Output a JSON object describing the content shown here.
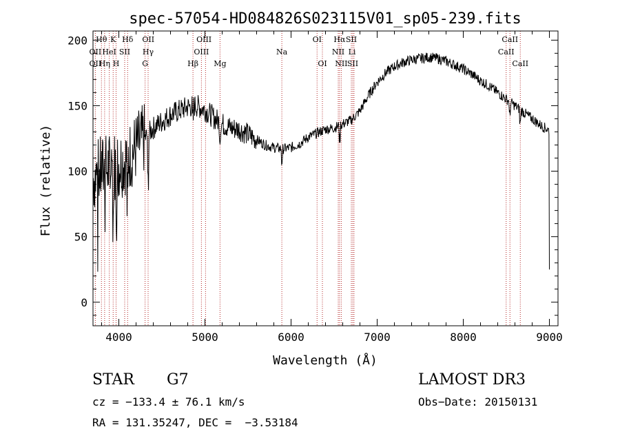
{
  "chart_data": {
    "type": "line",
    "title": "spec-57054-HD084826S023115V01_sp05-239.fits",
    "xlabel": "Wavelength (Å)",
    "ylabel": "Flux (relative)",
    "xlim": [
      3700,
      9100
    ],
    "ylim": [
      -18,
      207
    ],
    "xticks": [
      4000,
      5000,
      6000,
      7000,
      8000,
      9000
    ],
    "yticks": [
      0,
      50,
      100,
      150,
      200
    ],
    "series": [
      {
        "name": "flux",
        "x": [
          3700,
          3800,
          3900,
          4000,
          4100,
          4200,
          4300,
          4400,
          4500,
          4600,
          4700,
          4800,
          4900,
          5000,
          5100,
          5200,
          5300,
          5400,
          5500,
          5600,
          5700,
          5800,
          5900,
          6000,
          6100,
          6200,
          6300,
          6400,
          6500,
          6600,
          6700,
          6800,
          6900,
          7000,
          7100,
          7200,
          7300,
          7400,
          7500,
          7600,
          7700,
          7800,
          7900,
          8000,
          8100,
          8200,
          8300,
          8400,
          8500,
          8600,
          8700,
          8800,
          8900,
          9000
        ],
        "y": [
          95,
          100,
          103,
          106,
          110,
          118,
          125,
          133,
          138,
          143,
          146,
          149,
          150,
          147,
          141,
          136,
          133,
          132,
          128,
          124,
          120,
          118,
          117,
          118,
          121,
          126,
          129,
          132,
          133,
          136,
          139,
          146,
          158,
          168,
          175,
          180,
          183,
          185,
          186,
          187,
          186,
          184,
          181,
          178,
          174,
          169,
          165,
          160,
          155,
          150,
          145,
          140,
          135,
          131
        ]
      }
    ],
    "line_markers": [
      {
        "label": "Hθ",
        "x": 3798,
        "row": 0
      },
      {
        "label": "K",
        "x": 3934,
        "row": 0
      },
      {
        "label": "Hδ",
        "x": 4102,
        "row": 0
      },
      {
        "label": "OII",
        "x": 4342,
        "row": 0
      },
      {
        "label": "OIII",
        "x": 4989,
        "row": 0
      },
      {
        "label": "OI",
        "x": 6302,
        "row": 0
      },
      {
        "label": "Hα",
        "x": 6563,
        "row": 0
      },
      {
        "label": "SII",
        "x": 6700,
        "row": 0
      },
      {
        "label": "CaII",
        "x": 8542,
        "row": 0
      },
      {
        "label": "OII",
        "x": 3727,
        "row": 1
      },
      {
        "label": "HeI",
        "x": 3889,
        "row": 1
      },
      {
        "label": "SII",
        "x": 4068,
        "row": 1
      },
      {
        "label": "Hγ",
        "x": 4340,
        "row": 1
      },
      {
        "label": "OIII",
        "x": 4959,
        "row": 1
      },
      {
        "label": "Na",
        "x": 5893,
        "row": 1
      },
      {
        "label": "NII",
        "x": 6548,
        "row": 1
      },
      {
        "label": "Li",
        "x": 6708,
        "row": 1
      },
      {
        "label": "CaII",
        "x": 8498,
        "row": 1
      },
      {
        "label": "OII",
        "x": 3727,
        "row": 2
      },
      {
        "label": "Hη",
        "x": 3835,
        "row": 2
      },
      {
        "label": "H",
        "x": 3968,
        "row": 2
      },
      {
        "label": "G",
        "x": 4305,
        "row": 2
      },
      {
        "label": "Hβ",
        "x": 4861,
        "row": 2
      },
      {
        "label": "Mg",
        "x": 5175,
        "row": 2
      },
      {
        "label": "OI",
        "x": 6364,
        "row": 2
      },
      {
        "label": "NII",
        "x": 6583,
        "row": 2
      },
      {
        "label": "SII",
        "x": 6716,
        "row": 2
      },
      {
        "label": "CaII",
        "x": 8662,
        "row": 2
      }
    ],
    "marker_lines": [
      3727,
      3798,
      3835,
      3889,
      3934,
      3968,
      4068,
      4102,
      4305,
      4340,
      4861,
      4959,
      5007,
      5175,
      5893,
      6302,
      6364,
      6548,
      6563,
      6583,
      6700,
      6716,
      6731,
      8498,
      8542,
      8662
    ]
  },
  "info": {
    "object_type": "STAR",
    "subclass": "G7",
    "survey": "LAMOST DR3",
    "cz": "cz = −133.4 ± 76.1 km/s",
    "obs_date": "Obs−Date: 20150131",
    "coords": "RA = 131.35247, DEC =  −3.53184"
  }
}
